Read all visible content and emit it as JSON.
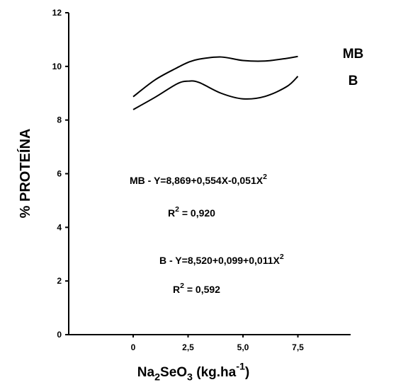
{
  "chart_data": {
    "type": "line",
    "x": [
      0,
      1,
      2,
      2.5,
      3,
      4,
      5,
      6,
      7,
      7.5
    ],
    "series": [
      {
        "name": "MB",
        "color": "#000000",
        "values": [
          8.87,
          9.5,
          9.95,
          10.15,
          10.27,
          10.35,
          10.22,
          10.2,
          10.3,
          10.37
        ]
      },
      {
        "name": "B",
        "color": "#000000",
        "values": [
          8.39,
          8.85,
          9.35,
          9.45,
          9.4,
          9.0,
          8.79,
          8.88,
          9.25,
          9.63
        ]
      }
    ],
    "xlim": [
      -2.9,
      9.9
    ],
    "xticks": [
      0,
      {
        "value": 2.5,
        "label": "2,5"
      },
      {
        "value": 5,
        "label": "5,0"
      },
      {
        "value": 7.5,
        "label": "7,5"
      }
    ],
    "ylim": [
      0,
      12
    ],
    "yticks": [
      0,
      2,
      4,
      6,
      8,
      10,
      12
    ],
    "ylabel": "% PROTEÍNA",
    "xlabel": [
      {
        "t": "Na"
      },
      {
        "t": "2",
        "sub": true
      },
      {
        "t": "SeO"
      },
      {
        "t": "3",
        "sub": true
      },
      {
        "t": " (kg.ha"
      },
      {
        "t": "-1",
        "sup": true
      },
      {
        "t": ")"
      }
    ],
    "annotations": [
      {
        "parts": [
          {
            "t": "MB  -  Y=8,869+0,554X-0,051X"
          },
          {
            "t": "2",
            "sup": true
          }
        ]
      },
      {
        "parts": [
          {
            "t": "R"
          },
          {
            "t": "2",
            "sup": true
          },
          {
            "t": "  =  0,920"
          }
        ]
      },
      {
        "parts": [
          {
            "t": "B  -  Y=8,520+0,099+0,011X"
          },
          {
            "t": "2",
            "sup": true
          }
        ]
      },
      {
        "parts": [
          {
            "t": "R"
          },
          {
            "t": "2",
            "sup": true
          },
          {
            "t": "  =  0,592"
          }
        ]
      }
    ]
  }
}
